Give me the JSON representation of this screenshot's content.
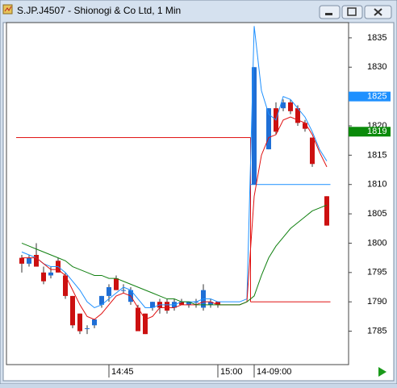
{
  "window": {
    "title": "S.JP.J4507 - Shionogi & Co Ltd, 1 Min"
  },
  "chart_data": {
    "type": "candlestick",
    "categories": [
      null,
      null,
      null,
      null,
      null,
      null,
      null,
      null,
      null,
      null,
      null,
      null,
      "14:45",
      null,
      null,
      null,
      null,
      null,
      null,
      null,
      null,
      null,
      null,
      null,
      null,
      null,
      null,
      "15:00",
      null,
      null,
      null,
      null,
      "14-09:00",
      null,
      null,
      null,
      null,
      null,
      null,
      null,
      null,
      null,
      null
    ],
    "open": [
      1797.5,
      1796.5,
      1798,
      1795,
      1794.5,
      1797,
      1794.5,
      1791,
      1788,
      1785.5,
      1786,
      1789.5,
      1791,
      1794,
      1792,
      1790,
      1789,
      1788,
      1789,
      1790,
      1790,
      1789,
      1790,
      1789.5,
      1790,
      1789,
      1789.5,
      1790,
      null,
      null,
      null,
      null,
      1810,
      null,
      1816,
      1823,
      1823,
      1824,
      1823,
      1820.5,
      1818,
      null,
      1808
    ],
    "high": [
      1798,
      1798,
      1800,
      1796,
      1796,
      1797.5,
      1795,
      1791,
      1788,
      1786,
      1787,
      1791,
      1793,
      1794.5,
      1793,
      1792.5,
      1789.5,
      1788,
      1790,
      1790.5,
      1790.5,
      1790.5,
      1790.5,
      1790,
      1790.5,
      1793,
      1790.5,
      1790,
      null,
      null,
      null,
      null,
      1830,
      null,
      1823,
      1824,
      1824.5,
      1824.5,
      1823.5,
      1821,
      1818,
      null,
      1808
    ],
    "low": [
      1795,
      1796,
      1796,
      1793,
      1794,
      1795,
      1790.5,
      1785.5,
      1784.5,
      1784.5,
      1785.5,
      1789,
      1790,
      1792,
      1791.5,
      1789.5,
      1785,
      1784.5,
      1788.5,
      1788,
      1788,
      1788.5,
      1789.5,
      1789,
      1789,
      1788.5,
      1789,
      1789,
      null,
      null,
      null,
      null,
      1810,
      null,
      1816,
      1818.5,
      1822.5,
      1822,
      1820,
      1819,
      1813,
      null,
      1803
    ],
    "close": [
      1796.5,
      1797.5,
      1796,
      1793.5,
      1795,
      1795,
      1791,
      1786,
      1785,
      1785.5,
      1787,
      1791,
      1792.5,
      1792,
      1792,
      1792,
      1785,
      1784.5,
      1790,
      1789,
      1788.5,
      1790,
      1789.5,
      1790,
      1790,
      1792,
      1790,
      1789.5,
      null,
      null,
      null,
      null,
      1830,
      null,
      1823,
      1819,
      1824,
      1822.5,
      1820.5,
      1819.5,
      1813.5,
      null,
      1803
    ],
    "up_color": "#1f6fd6",
    "down_color": "#cc1010",
    "series": [
      {
        "color": "#1e90ff",
        "values": [
          1798.5,
          1798,
          1797.5,
          1796.5,
          1796,
          1796,
          1795,
          1793.5,
          1792,
          1790,
          1789,
          1789.5,
          1790.5,
          1791.5,
          1792.5,
          1792,
          1790.5,
          1789,
          1789,
          1789.5,
          1789.5,
          1789.5,
          1790,
          1790,
          1790,
          1790.5,
          1790.5,
          1790,
          1790,
          1790,
          1790,
          1790.5,
          1837,
          1826,
          1822,
          1821,
          1825,
          1824.5,
          1823,
          1821.5,
          1819,
          1816,
          1814
        ]
      },
      {
        "color": "#e01010",
        "values": [
          1797.5,
          1797.5,
          1797.5,
          1796.5,
          1795.5,
          1795.5,
          1794.5,
          1792,
          1789.5,
          1787.5,
          1787,
          1788,
          1789.5,
          1791,
          1791.5,
          1791,
          1789,
          1787,
          1787.5,
          1789,
          1789,
          1789,
          1789.5,
          1789.5,
          1789.5,
          1790,
          1790,
          1789.5,
          1789.5,
          1789.5,
          1789.5,
          1790,
          1808,
          1815,
          1818,
          1818.5,
          1821,
          1821.5,
          1821,
          1820.5,
          1818.5,
          1815.5,
          1813
        ]
      },
      {
        "color": "#108010",
        "values": [
          1800,
          1799.5,
          1799,
          1798.5,
          1798,
          1797.5,
          1797,
          1796,
          1795.5,
          1795,
          1794.5,
          1794.5,
          1794,
          1794,
          1793.5,
          1793,
          1792.5,
          1792,
          1791.5,
          1791,
          1790.5,
          1790.5,
          1790,
          1790,
          1789.5,
          1789.5,
          1789.5,
          1789.5,
          1789.5,
          1789.5,
          1789.5,
          1790,
          1791,
          1794.5,
          1797.5,
          1799.5,
          1801,
          1802.5,
          1803.5,
          1804.5,
          1805.5,
          1806,
          1806.5
        ]
      }
    ],
    "steps": [
      {
        "color": "#e01010",
        "values": [
          1818,
          1818,
          1818,
          1818,
          1818,
          1818,
          1818,
          1818,
          1818,
          1818,
          1818,
          1818,
          1818,
          1818,
          1818,
          1818,
          1818,
          1818,
          1818,
          1818,
          1818,
          1818,
          1818,
          1818,
          1818,
          1818,
          1818,
          1818,
          1818,
          1818,
          1818,
          1818,
          1790,
          1790,
          1790,
          1790,
          1790,
          1790,
          1790,
          1790,
          1790,
          1790,
          1790
        ]
      },
      {
        "color": "#1e90ff",
        "values": [
          null,
          null,
          null,
          null,
          null,
          null,
          null,
          null,
          null,
          null,
          null,
          null,
          null,
          null,
          null,
          null,
          null,
          null,
          null,
          null,
          null,
          null,
          null,
          null,
          null,
          null,
          null,
          null,
          null,
          null,
          null,
          null,
          1810,
          1810,
          1810,
          1810,
          1810,
          1810,
          1810,
          1810,
          1810,
          1810,
          1810
        ]
      }
    ],
    "price_tags": [
      {
        "value": 1825,
        "color": "#1e90ff"
      },
      {
        "value": 1819,
        "color": "#0a8a0a"
      }
    ],
    "ylim": [
      1779.3,
      1837.6
    ],
    "yticks": [
      1785,
      1790,
      1795,
      1800,
      1805,
      1810,
      1815,
      1820,
      1825,
      1830,
      1835
    ]
  }
}
